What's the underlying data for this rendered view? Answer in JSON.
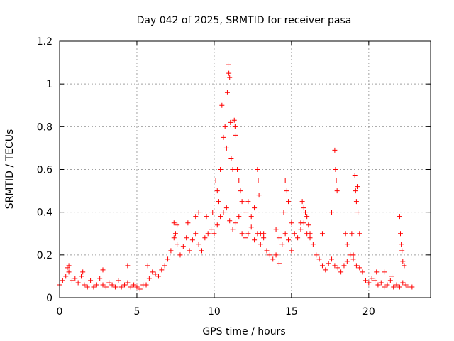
{
  "chart_data": {
    "type": "scatter",
    "title": "Day 042 of 2025, SRMTID for receiver pasa",
    "xlabel": "GPS time / hours",
    "ylabel": "SRMTID / TECUs",
    "xlim": [
      0,
      24
    ],
    "ylim": [
      0,
      1.2
    ],
    "x_ticks": [
      0,
      5,
      10,
      15,
      20
    ],
    "y_ticks": [
      0,
      0.2,
      0.4,
      0.6,
      0.8,
      1,
      1.2
    ],
    "x_tick_labels": [
      "0",
      "5",
      "10",
      "15",
      "20"
    ],
    "y_tick_labels": [
      "0",
      "0.2",
      "0.4",
      "0.6",
      "0.8",
      "1",
      "1.2"
    ],
    "grid": true,
    "marker": "+",
    "series": [
      {
        "name": "SRMTID",
        "color": "#ff0000",
        "x": [
          0.0,
          0.2,
          0.4,
          0.6,
          0.8,
          1.0,
          1.2,
          1.4,
          1.6,
          1.8,
          2.0,
          2.2,
          2.4,
          2.6,
          2.8,
          3.0,
          3.2,
          3.4,
          3.6,
          3.8,
          4.0,
          4.2,
          4.4,
          4.6,
          4.8,
          5.0,
          5.2,
          5.4,
          5.6,
          5.8,
          6.0,
          6.2,
          6.4,
          6.6,
          6.8,
          7.0,
          7.2,
          7.4,
          7.6,
          7.8,
          8.0,
          8.2,
          8.4,
          8.6,
          8.8,
          9.0,
          9.2,
          9.4,
          9.6,
          9.8,
          10.0,
          10.2,
          10.4,
          10.6,
          10.8,
          11.0,
          11.2,
          11.4,
          11.6,
          11.8,
          12.0,
          12.2,
          12.4,
          12.6,
          12.8,
          13.0,
          13.2,
          13.4,
          13.6,
          13.8,
          14.0,
          14.2,
          14.4,
          14.6,
          14.8,
          15.0,
          15.2,
          15.4,
          15.6,
          15.8,
          16.0,
          16.2,
          16.4,
          16.6,
          16.8,
          17.0,
          17.2,
          17.4,
          17.6,
          17.8,
          18.0,
          18.2,
          18.4,
          18.6,
          18.8,
          19.0,
          19.2,
          19.4,
          19.6,
          19.8,
          20.0,
          20.2,
          20.4,
          20.6,
          20.8,
          21.0,
          21.2,
          21.4,
          21.6,
          21.8,
          22.0,
          22.2,
          22.4,
          22.6,
          22.8,
          0.5,
          0.6,
          1.5,
          2.8,
          4.4,
          5.7,
          7.4,
          7.5,
          7.6,
          8.3,
          8.8,
          9.0,
          9.5,
          9.9,
          10.1,
          10.2,
          10.3,
          10.4,
          10.5,
          10.6,
          10.7,
          10.8,
          10.85,
          10.9,
          10.95,
          11.0,
          11.05,
          11.1,
          11.2,
          11.3,
          11.35,
          11.4,
          11.5,
          11.6,
          11.7,
          11.8,
          12.0,
          12.2,
          12.4,
          12.6,
          12.8,
          12.85,
          12.9,
          13.0,
          13.2,
          14.0,
          14.2,
          14.5,
          14.6,
          14.7,
          14.8,
          15.0,
          15.6,
          15.7,
          15.8,
          15.9,
          16.0,
          16.1,
          16.2,
          17.0,
          17.6,
          17.8,
          17.85,
          17.9,
          17.95,
          18.5,
          18.6,
          18.9,
          19.0,
          19.1,
          19.15,
          19.2,
          19.25,
          19.3,
          19.4,
          20.5,
          21.0,
          21.5,
          22.0,
          22.05,
          22.1,
          22.15,
          22.2,
          22.3
        ],
        "y": [
          0.06,
          0.08,
          0.1,
          0.12,
          0.08,
          0.09,
          0.07,
          0.1,
          0.06,
          0.05,
          0.08,
          0.05,
          0.06,
          0.09,
          0.06,
          0.05,
          0.07,
          0.06,
          0.05,
          0.08,
          0.05,
          0.06,
          0.07,
          0.05,
          0.06,
          0.05,
          0.04,
          0.06,
          0.06,
          0.09,
          0.12,
          0.11,
          0.1,
          0.13,
          0.15,
          0.18,
          0.22,
          0.28,
          0.25,
          0.2,
          0.24,
          0.28,
          0.22,
          0.27,
          0.3,
          0.25,
          0.22,
          0.28,
          0.3,
          0.32,
          0.3,
          0.34,
          0.38,
          0.4,
          0.42,
          0.36,
          0.32,
          0.35,
          0.38,
          0.3,
          0.28,
          0.3,
          0.33,
          0.27,
          0.3,
          0.25,
          0.28,
          0.22,
          0.2,
          0.18,
          0.2,
          0.16,
          0.25,
          0.3,
          0.27,
          0.22,
          0.3,
          0.28,
          0.32,
          0.35,
          0.3,
          0.28,
          0.25,
          0.2,
          0.18,
          0.15,
          0.13,
          0.16,
          0.18,
          0.15,
          0.14,
          0.12,
          0.15,
          0.17,
          0.2,
          0.18,
          0.15,
          0.14,
          0.12,
          0.08,
          0.07,
          0.09,
          0.08,
          0.06,
          0.07,
          0.05,
          0.06,
          0.08,
          0.05,
          0.06,
          0.05,
          0.07,
          0.06,
          0.05,
          0.05,
          0.14,
          0.15,
          0.12,
          0.13,
          0.15,
          0.15,
          0.35,
          0.3,
          0.34,
          0.35,
          0.38,
          0.4,
          0.38,
          0.4,
          0.55,
          0.5,
          0.45,
          0.6,
          0.9,
          0.75,
          0.8,
          0.7,
          0.96,
          1.09,
          1.05,
          1.03,
          0.82,
          0.65,
          0.6,
          0.83,
          0.8,
          0.76,
          0.6,
          0.55,
          0.5,
          0.45,
          0.4,
          0.45,
          0.38,
          0.42,
          0.6,
          0.55,
          0.48,
          0.3,
          0.3,
          0.32,
          0.28,
          0.4,
          0.55,
          0.5,
          0.45,
          0.35,
          0.35,
          0.45,
          0.42,
          0.4,
          0.38,
          0.34,
          0.3,
          0.3,
          0.4,
          0.69,
          0.6,
          0.55,
          0.5,
          0.3,
          0.25,
          0.3,
          0.2,
          0.57,
          0.5,
          0.45,
          0.52,
          0.4,
          0.3,
          0.12,
          0.12,
          0.1,
          0.38,
          0.3,
          0.25,
          0.22,
          0.17,
          0.15
        ]
      }
    ]
  }
}
